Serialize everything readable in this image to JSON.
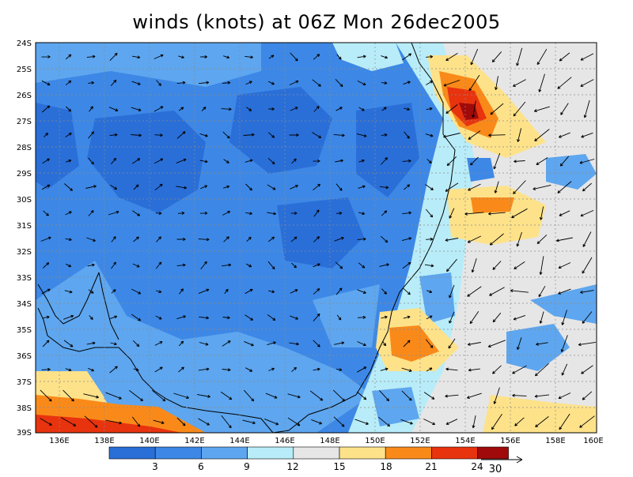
{
  "title": "winds (knots) at 06Z Mon 26dec2005",
  "map": {
    "lat_labels": [
      "24S",
      "25S",
      "26S",
      "27S",
      "28S",
      "29S",
      "30S",
      "31S",
      "32S",
      "33S",
      "34S",
      "35S",
      "36S",
      "37S",
      "38S",
      "39S"
    ],
    "lon_labels": [
      "136E",
      "138E",
      "140E",
      "142E",
      "144E",
      "146E",
      "148E",
      "150E",
      "152E",
      "154E",
      "156E",
      "158E",
      "160E"
    ]
  },
  "colorbar": {
    "labels": [
      "3",
      "6",
      "9",
      "12",
      "15",
      "18",
      "21",
      "24"
    ],
    "colors": [
      "#2a6fd8",
      "#3d88e6",
      "#5ea6ef",
      "#b8ecf8",
      "#e6e6e6",
      "#fde28a",
      "#f98a1a",
      "#e8330f",
      "#a00a0a"
    ]
  },
  "reference_vector": {
    "label": "30"
  }
}
